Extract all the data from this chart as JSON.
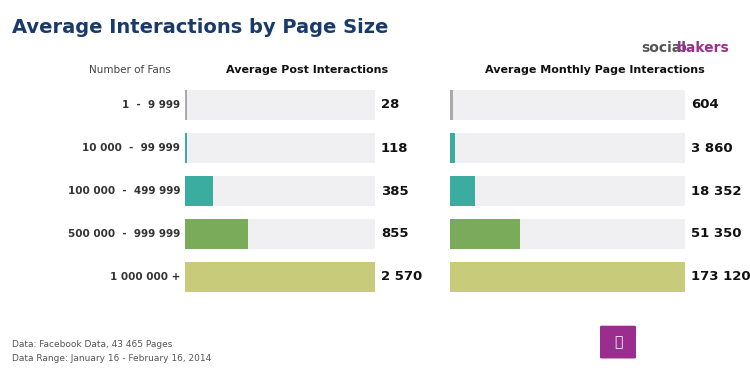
{
  "title": "Average Interactions by Page Size",
  "title_color": "#1a3a6b",
  "background_color": "#ffffff",
  "categories": [
    "1  -  9 999",
    "10 000  -  99 999",
    "100 000  -  499 999",
    "500 000  -  999 999",
    "1 000 000 +"
  ],
  "post_values": [
    28,
    118,
    385,
    855,
    2570
  ],
  "monthly_values": [
    604,
    3860,
    18352,
    51350,
    173120
  ],
  "post_max": 2570,
  "monthly_max": 173120,
  "post_bar_bg": "#f0f0f2",
  "monthly_bar_bg": "#f0f0f2",
  "post_bar_colors": [
    "#f0f0f2",
    "#f0f0f2",
    "#3aada0",
    "#7aab5a",
    "#c8cc7a"
  ],
  "monthly_bar_colors": [
    "#f0f0f2",
    "#3aada0",
    "#3aada0",
    "#7aab5a",
    "#c8cc7a"
  ],
  "post_accent_colors": [
    "#aaaaaa",
    "#3aada0",
    "#3aada0",
    "#7aab5a",
    "#c8cc7a"
  ],
  "monthly_accent_colors": [
    "#aaaaaa",
    "#3aada0",
    "#3aada0",
    "#7aab5a",
    "#c8cc7a"
  ],
  "col_header_post": "Average Post Interactions",
  "col_header_monthly": "Average Monthly Page Interactions",
  "col_header_fans": "Number of Fans",
  "footer_line1": "Data: Facebook Data, 43 465 Pages",
  "footer_line2": "Data Range: January 16 - February 16, 2014",
  "value_labels_post": [
    "28",
    "118",
    "385",
    "855",
    "2 570"
  ],
  "value_labels_monthly": [
    "604",
    "3 860",
    "18 352",
    "51 350",
    "173 120"
  ],
  "socialbakers_color": "#333333",
  "socialbakers_pink": "#9b2d8e"
}
